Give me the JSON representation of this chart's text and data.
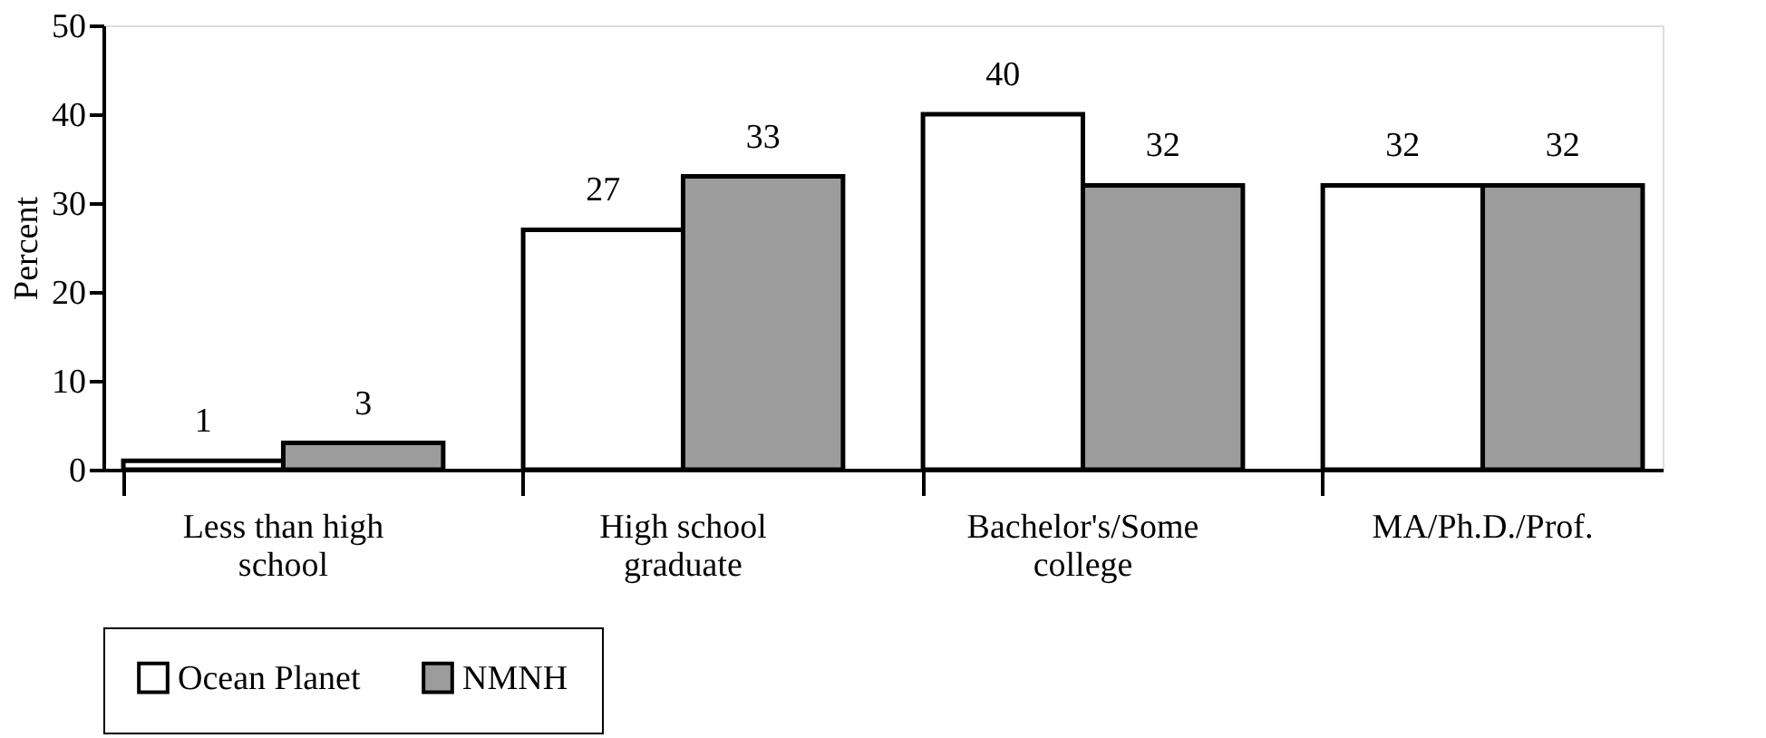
{
  "chart_data": {
    "type": "bar",
    "ylabel": "Percent",
    "categories": [
      "Less than high school",
      "High school graduate",
      "Bachelor's/Some college",
      "MA/Ph.D./Prof."
    ],
    "series": [
      {
        "name": "Ocean Planet",
        "color": "#ffffff",
        "values": [
          1,
          27,
          40,
          32
        ]
      },
      {
        "name": "NMNH",
        "color": "#9c9c9c",
        "values": [
          3,
          33,
          32,
          32
        ]
      }
    ],
    "ylim": [
      0,
      50
    ],
    "yticks": [
      0,
      10,
      20,
      30,
      40,
      50
    ],
    "grid": false,
    "legend": "bottom",
    "data_labels": true
  }
}
